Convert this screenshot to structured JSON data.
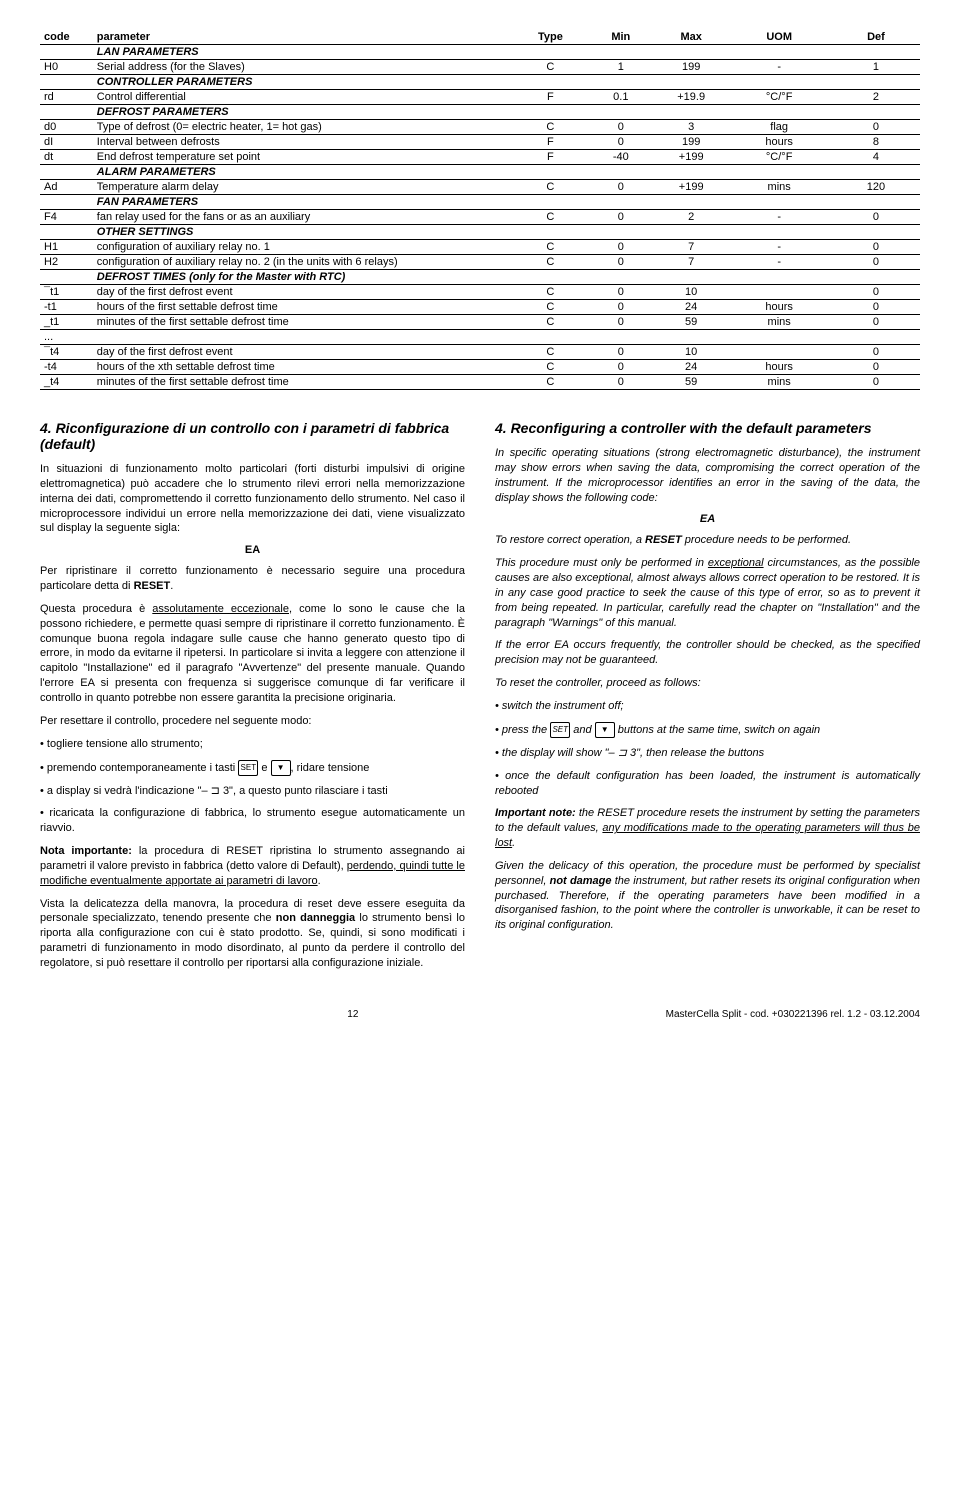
{
  "table": {
    "headers": [
      "code",
      "parameter",
      "Type",
      "Min",
      "Max",
      "UOM",
      "Def"
    ],
    "rows": [
      {
        "section": "LAN PARAMETERS"
      },
      {
        "code": "H0",
        "param": "Serial address (for the Slaves)",
        "type": "C",
        "min": "1",
        "max": "199",
        "uom": "-",
        "def": "1"
      },
      {
        "section": "CONTROLLER PARAMETERS"
      },
      {
        "code": "rd",
        "param": "Control differential",
        "type": "F",
        "min": "0.1",
        "max": "+19.9",
        "uom": "°C/°F",
        "def": "2"
      },
      {
        "section": "DEFROST PARAMETERS"
      },
      {
        "code": "d0",
        "param": "Type of defrost (0= electric heater, 1= hot gas)",
        "type": "C",
        "min": "0",
        "max": "3",
        "uom": "flag",
        "def": "0"
      },
      {
        "code": "dI",
        "param": "Interval between defrosts",
        "type": "F",
        "min": "0",
        "max": "199",
        "uom": "hours",
        "def": "8"
      },
      {
        "code": "dt",
        "param": "End defrost temperature set point",
        "type": "F",
        "min": "-40",
        "max": "+199",
        "uom": "°C/°F",
        "def": "4"
      },
      {
        "section": "ALARM PARAMETERS"
      },
      {
        "code": "Ad",
        "param": "Temperature alarm delay",
        "type": "C",
        "min": "0",
        "max": "+199",
        "uom": "mins",
        "def": "120"
      },
      {
        "section": "FAN PARAMETERS"
      },
      {
        "code": "F4",
        "param": "fan relay used for the fans or as an auxiliary",
        "type": "C",
        "min": "0",
        "max": "2",
        "uom": "-",
        "def": "0"
      },
      {
        "section": "OTHER SETTINGS"
      },
      {
        "code": "H1",
        "param": "configuration of auxiliary relay no. 1",
        "type": "C",
        "min": "0",
        "max": "7",
        "uom": "-",
        "def": "0"
      },
      {
        "code": "H2",
        "param": "configuration of auxiliary relay no. 2 (in the units with 6 relays)",
        "type": "C",
        "min": "0",
        "max": "7",
        "uom": "-",
        "def": "0"
      },
      {
        "section": "DEFROST TIMES  (only for the Master with RTC)"
      },
      {
        "code": "¯t1",
        "param": "day of the first defrost event",
        "type": "C",
        "min": "0",
        "max": "10",
        "uom": "",
        "def": "0"
      },
      {
        "code": "-t1",
        "param": "hours of the first settable defrost time",
        "type": "C",
        "min": "0",
        "max": "24",
        "uom": "hours",
        "def": "0"
      },
      {
        "code": "_t1",
        "param": "minutes of the first settable defrost time",
        "type": "C",
        "min": "0",
        "max": "59",
        "uom": "mins",
        "def": "0"
      },
      {
        "code": "...",
        "param": "",
        "type": "",
        "min": "",
        "max": "",
        "uom": "",
        "def": ""
      },
      {
        "code": "¯t4",
        "param": "day of the first defrost event",
        "type": "C",
        "min": "0",
        "max": "10",
        "uom": "",
        "def": "0"
      },
      {
        "code": "-t4",
        "param": "hours of the xth settable defrost time",
        "type": "C",
        "min": "0",
        "max": "24",
        "uom": "hours",
        "def": "0"
      },
      {
        "code": "_t4",
        "param": "minutes of the first settable defrost time",
        "type": "C",
        "min": "0",
        "max": "59",
        "uom": "mins",
        "def": "0"
      }
    ]
  },
  "left": {
    "title": "4. Riconfigurazione di un controllo con i parametri di fabbrica (default)",
    "p1": "In situazioni di funzionamento molto particolari (forti disturbi impulsivi di origine elettromagnetica) può accadere che lo strumento rilevi errori nella memorizzazione interna dei dati, compromettendo il corretto funzionamento dello strumento. Nel caso il microprocessore individui un errore nella memorizzazione dei dati, viene visualizzato sul display la seguente sigla:",
    "ea": "EA",
    "p2a": "Per ripristinare il corretto funzionamento è necessario seguire una procedura particolare detta di ",
    "p2b": "RESET",
    "p2c": ".",
    "p3a": "Questa procedura è ",
    "p3b": "assolutamente eccezionale",
    "p3c": ", come lo sono le cause che la possono richiedere, e permette quasi sempre di ripristinare il corretto funzionamento. È comunque buona regola indagare sulle cause che hanno generato questo tipo di errore, in modo da evitarne il ripetersi. In particolare si invita a leggere con attenzione il capitolo \"Installazione\" ed il paragrafo \"Avvertenze\" del presente manuale. Quando l'errore EA si presenta con frequenza si suggerisce comunque di far verificare il controllo in quanto potrebbe non essere garantita la precisione originaria.",
    "p4": "Per resettare il controllo, procedere nel seguente modo:",
    "b1": "• togliere tensione allo strumento;",
    "b2a": "• premendo contemporaneamente i tasti ",
    "b2b": " e ",
    "b2c": ", ridare tensione",
    "b3": "• a display si vedrà l'indicazione \"– ⊐ 3\", a questo punto rilasciare i tasti",
    "b4": "• ricaricata la configurazione di fabbrica, lo strumento esegue automaticamente un riavvio.",
    "p5a": "Nota importante:",
    "p5b": " la procedura di RESET ripristina lo strumento assegnando ai parametri il valore previsto in fabbrica (detto valore di Default), ",
    "p5c": "perdendo, quindi tutte le modifiche eventualmente apportate ai parametri di lavoro",
    "p5d": ".",
    "p6a": "Vista la delicatezza della manovra, la procedura di reset deve essere eseguita da personale specializzato, tenendo presente che ",
    "p6b": "non danneggia",
    "p6c": " lo strumento bensì lo riporta alla configurazione con cui è stato prodotto. Se, quindi, si sono modificati i parametri di funzionamento in modo disordinato, al punto da perdere il controllo del regolatore, si può resettare il controllo per riportarsi alla configurazione iniziale."
  },
  "right": {
    "title": "4. Reconfiguring a controller with the default parameters",
    "p1": "In specific operating situations (strong electromagnetic disturbance), the instrument may show errors when saving the data, compromising the correct operation of the instrument. If the microprocessor identifies an error in the saving of the data, the display shows the following code:",
    "ea": "EA",
    "p2a": "To restore correct operation, a ",
    "p2b": "RESET",
    "p2c": " procedure needs to be performed.",
    "p3a": "This procedure must only be performed in ",
    "p3b": "exceptional",
    "p3c": " circumstances, as the possible causes are also exceptional, almost always allows correct operation to be restored. It is in any case good practice to seek the cause of this type of error, so as to prevent it from being repeated. In particular, carefully read the chapter on \"Installation\" and the paragraph \"Warnings\" of this manual.",
    "p3d": "If the error EA occurs frequently, the controller should be checked, as the specified precision may not be guaranteed.",
    "p4": "To reset the controller, proceed as follows:",
    "b1": "• switch the instrument off;",
    "b2a": "• press the ",
    "b2b": " and ",
    "b2c": " buttons at the same time, switch on again",
    "b3": "• the display will show \"– ⊐ 3\", then release the buttons",
    "b4": "• once the default configuration has been loaded, the instrument is automatically rebooted",
    "p5a": "Important note:",
    "p5b": " the RESET procedure resets the instrument by setting the parameters to the default values, ",
    "p5c": "any modifications made to the operating parameters will thus be lost",
    "p5d": ".",
    "p6a": "Given the delicacy of this operation, the procedure must be performed by specialist personnel, ",
    "p6b": "not damage",
    "p6c": " the instrument, but rather resets its original configuration when purchased. Therefore, if the operating parameters have been modified in a disorganised fashion, to the point where the controller is unworkable, it can be reset to its original configuration."
  },
  "footer": {
    "page": "12",
    "ref": "MasterCella Split - cod. +030221396  rel. 1.2 - 03.12.2004"
  }
}
